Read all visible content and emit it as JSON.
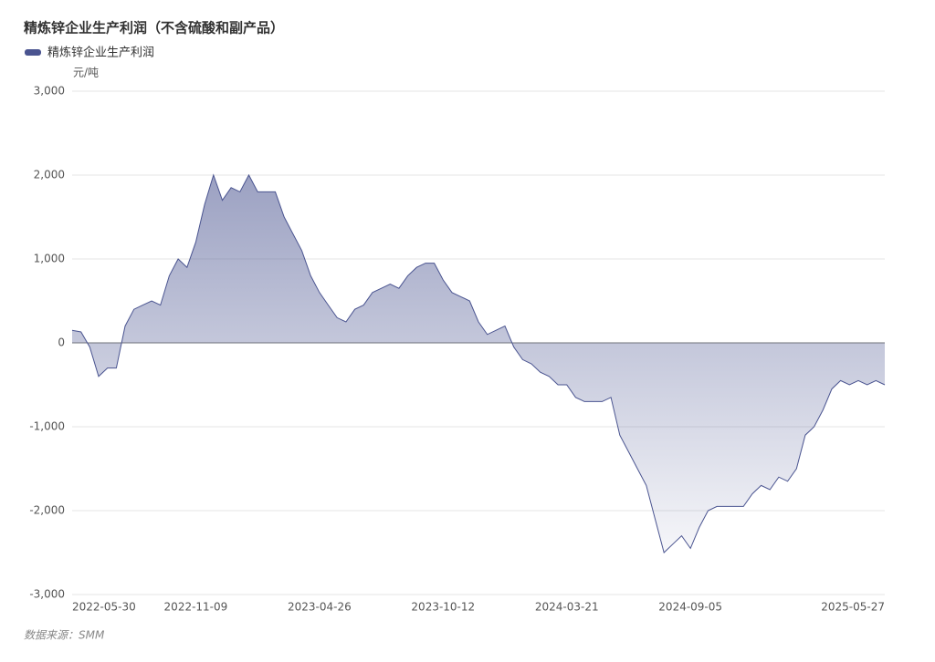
{
  "chart_data": {
    "type": "area",
    "title": "精炼锌企业生产利润（不含硫酸和副产品）",
    "y_axis_label": "元/吨",
    "source": "数据来源：SMM",
    "categories": [
      "2022-05-30",
      null,
      null,
      null,
      null,
      null,
      null,
      null,
      null,
      null,
      null,
      null,
      null,
      null,
      "2022-11-09",
      null,
      null,
      null,
      null,
      null,
      null,
      null,
      null,
      null,
      null,
      null,
      null,
      null,
      "2023-04-26",
      null,
      null,
      null,
      null,
      null,
      null,
      null,
      null,
      null,
      null,
      null,
      null,
      null,
      "2023-10-12",
      null,
      null,
      null,
      null,
      null,
      null,
      null,
      null,
      null,
      null,
      null,
      null,
      null,
      "2024-03-21",
      null,
      null,
      null,
      null,
      null,
      null,
      null,
      null,
      null,
      null,
      null,
      null,
      null,
      "2024-09-05",
      null,
      null,
      null,
      null,
      null,
      null,
      null,
      null,
      null,
      null,
      null,
      null,
      null,
      null,
      null,
      null,
      null,
      null,
      null,
      null,
      null,
      "2025-05-27"
    ],
    "series": [
      {
        "name": "精炼锌企业生产利润",
        "color": "#4a5490",
        "values": [
          150,
          130,
          -50,
          -400,
          -300,
          -300,
          200,
          400,
          450,
          500,
          450,
          800,
          1000,
          900,
          1200,
          1650,
          2000,
          1700,
          1850,
          1800,
          2000,
          1800,
          1800,
          1800,
          1500,
          1300,
          1100,
          800,
          600,
          450,
          300,
          250,
          400,
          450,
          600,
          650,
          700,
          650,
          800,
          900,
          950,
          950,
          750,
          600,
          550,
          500,
          250,
          100,
          150,
          200,
          -50,
          -200,
          -250,
          -350,
          -400,
          -500,
          -500,
          -650,
          -700,
          -700,
          -700,
          -650,
          -1100,
          -1300,
          -1500,
          -1700,
          -2100,
          -2500,
          -2400,
          -2300,
          -2450,
          -2200,
          -2000,
          -1950,
          -1950,
          -1950,
          -1950,
          -1800,
          -1700,
          -1750,
          -1600,
          -1650,
          -1500,
          -1100,
          -1000,
          -800,
          -550,
          -450,
          -500,
          -450,
          -500,
          -450,
          -500
        ]
      }
    ],
    "ylim": [
      -3000,
      3000
    ],
    "yticks": [
      {
        "value": -3000,
        "label": "-3,000"
      },
      {
        "value": -2000,
        "label": "-2,000"
      },
      {
        "value": -1000,
        "label": "-1,000"
      },
      0,
      {
        "value": 1000,
        "label": "1,000"
      },
      {
        "value": 2000,
        "label": "2,000"
      },
      {
        "value": 3000,
        "label": "3,000"
      }
    ],
    "grid": true
  }
}
